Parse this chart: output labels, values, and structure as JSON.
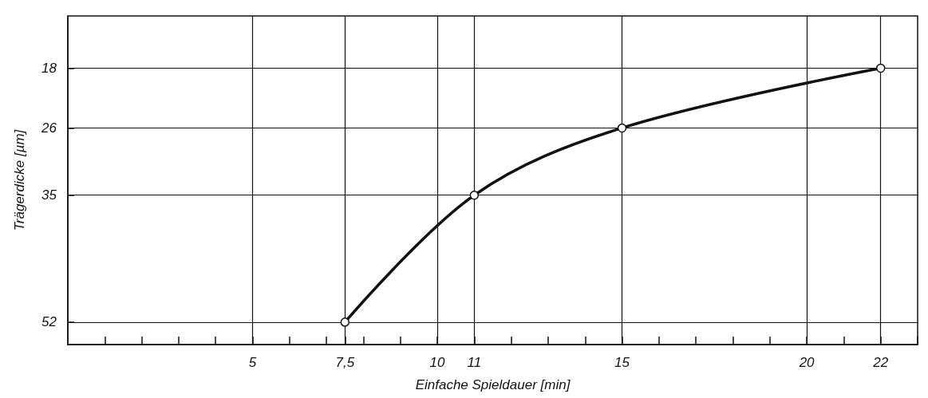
{
  "chart_data": {
    "type": "line",
    "xlabel": "Einfache Spieldauer [min]",
    "ylabel": "Trägerdicke [µm]",
    "x": [
      7.5,
      11,
      15,
      22
    ],
    "series": [
      {
        "color": "#111111",
        "values": [
          52,
          35,
          26,
          18
        ]
      }
    ],
    "xlim": [
      0,
      23
    ],
    "xticks": [
      {
        "value": 1,
        "label": null
      },
      {
        "value": 2,
        "label": null
      },
      {
        "value": 3,
        "label": null
      },
      {
        "value": 4,
        "label": null
      },
      5,
      {
        "value": 6,
        "label": null
      },
      {
        "value": 7,
        "label": null
      },
      {
        "value": 7.5,
        "label": "7,5"
      },
      {
        "value": 8,
        "label": null
      },
      {
        "value": 9,
        "label": null
      },
      10,
      11,
      {
        "value": 12,
        "label": null
      },
      {
        "value": 13,
        "label": null
      },
      {
        "value": 14,
        "label": null
      },
      15,
      {
        "value": 16,
        "label": null
      },
      {
        "value": 17,
        "label": null
      },
      {
        "value": 18,
        "label": null
      },
      {
        "value": 19,
        "label": null
      },
      20,
      {
        "value": 21,
        "label": null
      },
      22,
      {
        "value": 23,
        "label": null
      }
    ],
    "ylim": [
      55,
      11
    ],
    "yticks": [
      18,
      26,
      35,
      52
    ],
    "grid": true,
    "marker": "circle",
    "line_style": "solid"
  }
}
